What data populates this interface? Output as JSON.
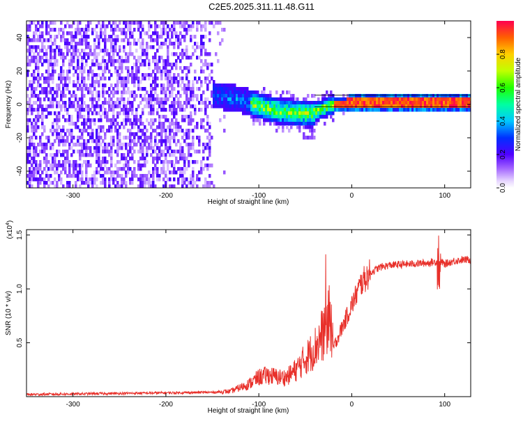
{
  "title": "C2E5.2025.311.11.48.G11",
  "chart_data": [
    {
      "type": "heatmap",
      "title": "C2E5.2025.311.11.48.G11",
      "xlabel": "Height of straight line (km)",
      "ylabel": "Frequency (Hz)",
      "xlim": [
        -350,
        128
      ],
      "ylim": [
        -50,
        50
      ],
      "xticks": [
        -300,
        -200,
        -100,
        0,
        100
      ],
      "xticklabels": [
        "-300",
        "-200",
        "-100",
        "0",
        "100"
      ],
      "yticks": [
        -40,
        -20,
        0,
        20,
        40
      ],
      "yticklabels": [
        "-40",
        "-20",
        "0",
        "20",
        "40"
      ],
      "colorbar": {
        "label": "Normalized spectral amplitude",
        "range": [
          0,
          1
        ],
        "ticks": [
          0.0,
          0.2,
          0.4,
          0.6,
          0.8
        ],
        "ticklabels": [
          "0.0",
          "0.2",
          "0.4",
          "0.6",
          "0.8"
        ],
        "colormap": "rainbow",
        "low_color": "#ffffff",
        "mid_color": "#0000ff",
        "high_color": "#ff0000"
      },
      "dominant_frequency_track": {
        "x": [
          -155,
          -140,
          -120,
          -100,
          -80,
          -60,
          -45,
          -35,
          -20,
          0,
          20,
          60,
          100,
          128
        ],
        "y": [
          7,
          6,
          4,
          0,
          -3,
          -4,
          -5,
          -2,
          1,
          2,
          2,
          2,
          2,
          2
        ]
      },
      "noise_region": {
        "x_range": [
          -350,
          -150
        ],
        "freq_range": [
          -50,
          50
        ]
      }
    },
    {
      "type": "line",
      "xlabel": "Height of straight line (km)",
      "ylabel": "SNR (10 * v/v)",
      "y_scale_label": "(x10",
      "y_scale_exponent": "4",
      "y_scale_suffix": ")",
      "xlim": [
        -350,
        128
      ],
      "ylim": [
        0,
        15500
      ],
      "xticks": [
        -300,
        -200,
        -100,
        0,
        100
      ],
      "xticklabels": [
        "-300",
        "-200",
        "-100",
        "0",
        "100"
      ],
      "yticks": [
        5000,
        10000,
        15000
      ],
      "yticklabels": [
        "0.5",
        "1.0",
        "1.5"
      ],
      "line_color": "#e8302a",
      "series": [
        {
          "name": "SNR",
          "x": [
            -350,
            -300,
            -250,
            -200,
            -150,
            -130,
            -110,
            -100,
            -90,
            -80,
            -70,
            -60,
            -50,
            -40,
            -30,
            -25,
            -20,
            -15,
            -10,
            -5,
            0,
            5,
            10,
            20,
            30,
            40,
            60,
            80,
            90,
            95,
            100,
            110,
            120,
            128
          ],
          "y": [
            200,
            250,
            300,
            350,
            400,
            500,
            1200,
            1800,
            2000,
            1800,
            1800,
            2500,
            3500,
            4500,
            6000,
            7000,
            4500,
            5500,
            6500,
            7500,
            8500,
            9500,
            10500,
            11500,
            12000,
            12200,
            12300,
            12400,
            12500,
            12600,
            12300,
            12600,
            12700,
            12700
          ]
        }
      ]
    }
  ]
}
